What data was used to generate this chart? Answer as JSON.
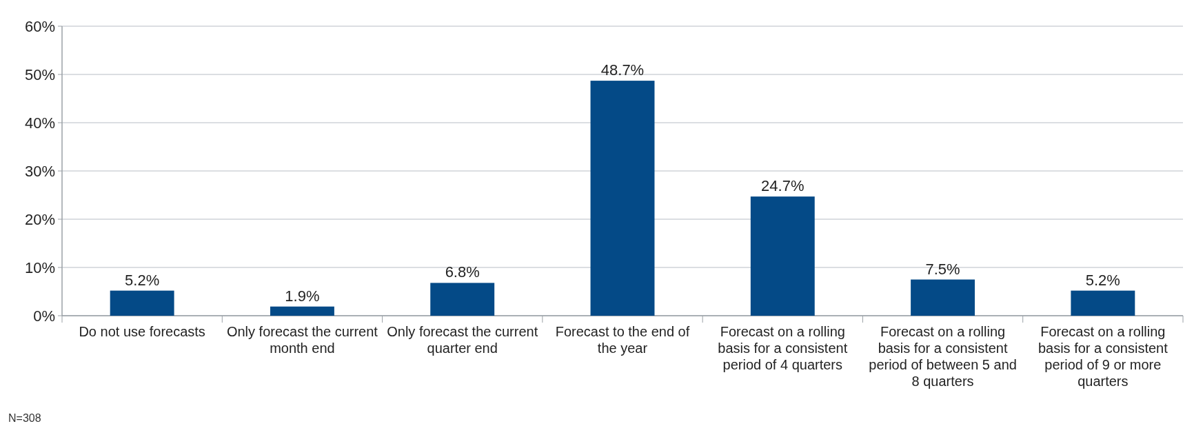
{
  "chart_data": {
    "type": "bar",
    "categories": [
      "Do not use forecasts",
      "Only forecast the current month end",
      "Only forecast the current quarter end",
      "Forecast to the end of the year",
      "Forecast on a rolling basis for a consistent period of 4 quarters",
      "Forecast on a rolling basis for a consistent period of between 5 and 8 quarters",
      "Forecast on a rolling basis for a consistent period of 9 or more quarters"
    ],
    "values": [
      5.2,
      1.9,
      6.8,
      48.7,
      24.7,
      7.5,
      5.2
    ],
    "color": "#044a87",
    "ylim": [
      0,
      60
    ],
    "yticks": [
      {
        "value": 0,
        "label": "0%"
      },
      {
        "value": 10,
        "label": "10%"
      },
      {
        "value": 20,
        "label": "20%"
      },
      {
        "value": 30,
        "label": "30%"
      },
      {
        "value": 40,
        "label": "40%"
      },
      {
        "value": 50,
        "label": "50%"
      },
      {
        "value": 60,
        "label": "60%"
      }
    ],
    "value_labels": [
      "5.2%",
      "1.9%",
      "6.8%",
      "48.7%",
      "24.7%",
      "7.5%",
      "5.2%"
    ],
    "grid": "y",
    "annotations": [
      "N=308"
    ]
  }
}
